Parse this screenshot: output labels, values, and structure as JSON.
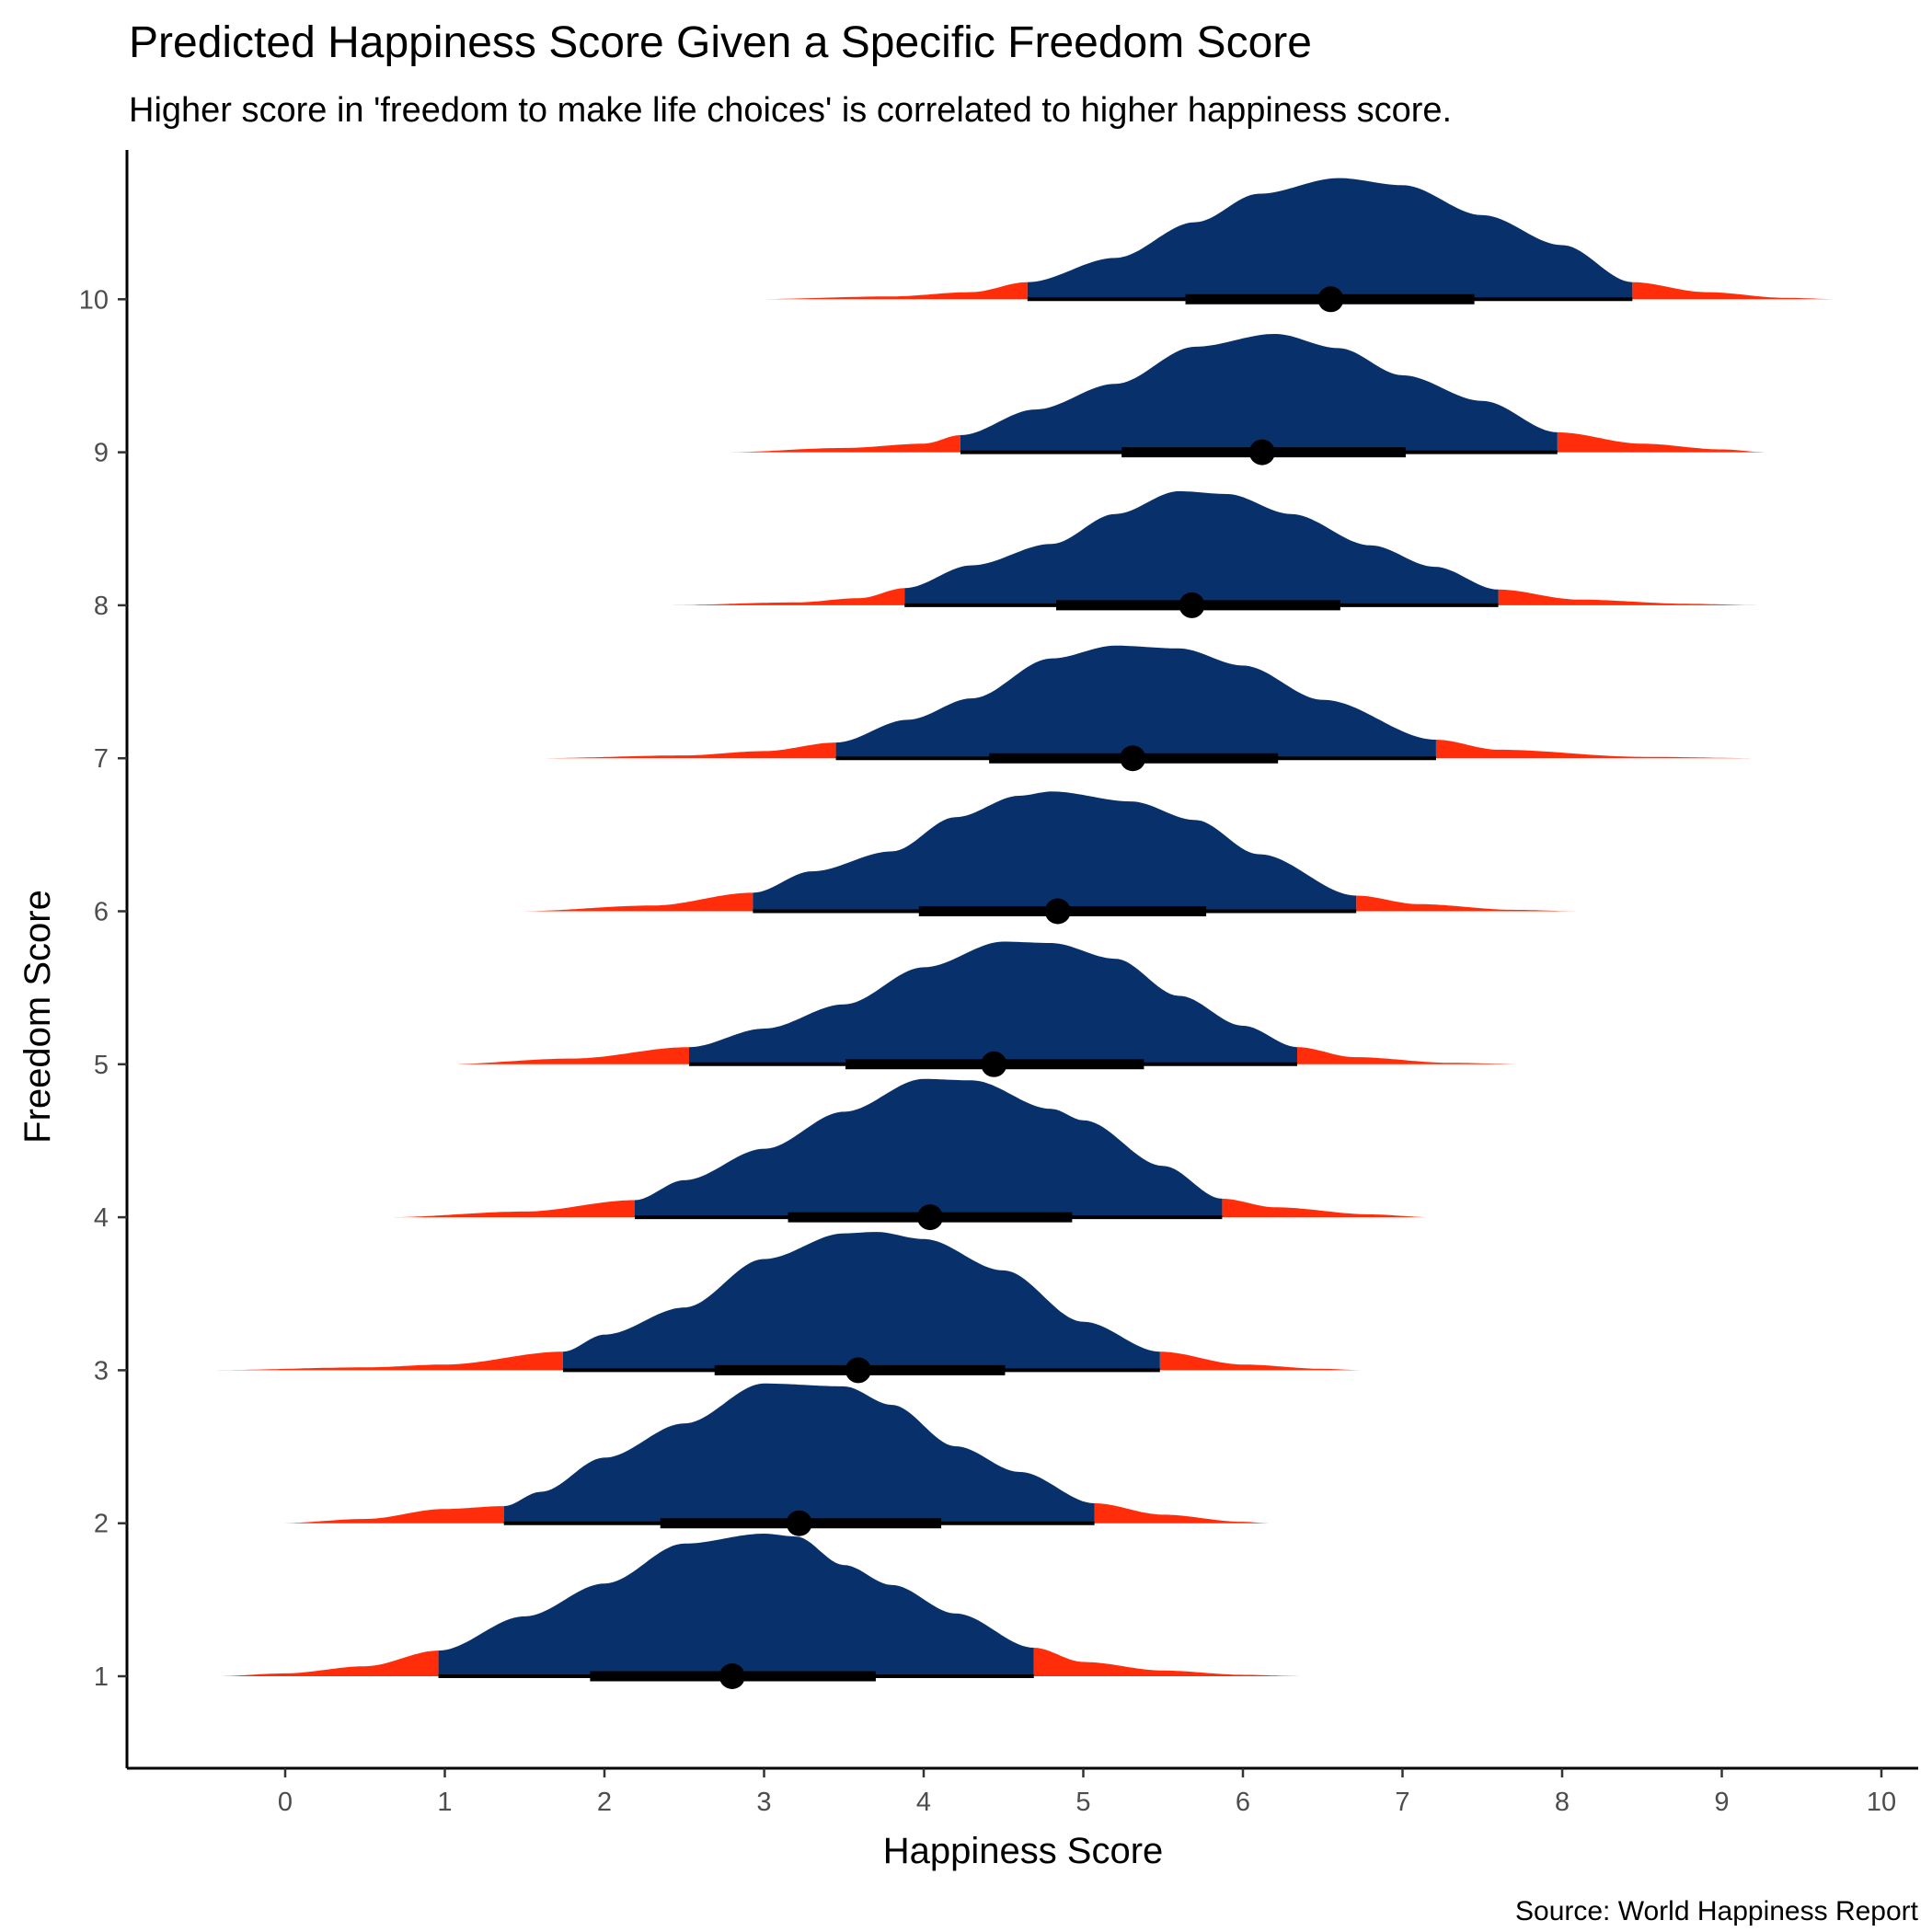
{
  "chart_data": {
    "type": "area",
    "title": "Predicted Happiness Score Given a Specific Freedom Score",
    "subtitle": "Higher score in 'freedom to make life choices' is correlated to higher happiness score.",
    "xlabel": "Happiness Score",
    "ylabel": "Freedom Score",
    "caption": "Source: World Happiness Report",
    "xlim": [
      -1.0,
      10.25
    ],
    "ylim": [
      0.4,
      11.0
    ],
    "x_ticks": [
      0,
      1,
      2,
      3,
      4,
      5,
      6,
      7,
      8,
      9,
      10
    ],
    "y_ticks": [
      1,
      2,
      3,
      4,
      5,
      6,
      7,
      8,
      9,
      10
    ],
    "colors": {
      "interval_fill": "#08306b",
      "tail_fill": "#ff2d0a",
      "interval_line": "#000000",
      "point": "#000000"
    },
    "series": [
      {
        "freedom": 1,
        "median": 2.8,
        "range": [
          -0.43,
          6.38
        ],
        "ci66": [
          1.91,
          3.7
        ],
        "ci95": [
          0.96,
          4.69
        ],
        "density": [
          [
            -0.43,
            0
          ],
          [
            0,
            0.02
          ],
          [
            0.5,
            0.07
          ],
          [
            0.96,
            0.18
          ],
          [
            1.5,
            0.42
          ],
          [
            2.0,
            0.65
          ],
          [
            2.5,
            0.93
          ],
          [
            3.0,
            1.0
          ],
          [
            3.2,
            0.98
          ],
          [
            3.5,
            0.78
          ],
          [
            3.8,
            0.64
          ],
          [
            4.2,
            0.44
          ],
          [
            4.69,
            0.2
          ],
          [
            5.0,
            0.1
          ],
          [
            5.5,
            0.04
          ],
          [
            6.0,
            0.01
          ],
          [
            6.38,
            0
          ]
        ]
      },
      {
        "freedom": 2,
        "median": 3.22,
        "range": [
          -0.03,
          6.17
        ],
        "ci66": [
          2.35,
          4.11
        ],
        "ci95": [
          1.37,
          5.07
        ],
        "density": [
          [
            -0.03,
            0
          ],
          [
            0.5,
            0.03
          ],
          [
            1.0,
            0.1
          ],
          [
            1.37,
            0.12
          ],
          [
            1.6,
            0.22
          ],
          [
            2.0,
            0.46
          ],
          [
            2.5,
            0.7
          ],
          [
            3.0,
            0.98
          ],
          [
            3.5,
            0.96
          ],
          [
            3.8,
            0.83
          ],
          [
            4.2,
            0.54
          ],
          [
            4.6,
            0.36
          ],
          [
            5.07,
            0.14
          ],
          [
            5.5,
            0.06
          ],
          [
            6.0,
            0.01
          ],
          [
            6.17,
            0
          ]
        ]
      },
      {
        "freedom": 3,
        "median": 3.59,
        "range": [
          -0.48,
          6.76
        ],
        "ci66": [
          2.69,
          4.51
        ],
        "ci95": [
          1.74,
          5.48
        ],
        "density": [
          [
            -0.48,
            0
          ],
          [
            0.5,
            0.02
          ],
          [
            1.0,
            0.04
          ],
          [
            1.74,
            0.13
          ],
          [
            2.0,
            0.25
          ],
          [
            2.5,
            0.44
          ],
          [
            3.0,
            0.78
          ],
          [
            3.5,
            0.96
          ],
          [
            3.7,
            0.97
          ],
          [
            4.0,
            0.92
          ],
          [
            4.5,
            0.7
          ],
          [
            5.0,
            0.34
          ],
          [
            5.48,
            0.13
          ],
          [
            6.0,
            0.04
          ],
          [
            6.5,
            0.01
          ],
          [
            6.76,
            0
          ]
        ]
      },
      {
        "freedom": 4,
        "median": 4.04,
        "range": [
          0.65,
          7.18
        ],
        "ci66": [
          3.15,
          4.93
        ],
        "ci95": [
          2.19,
          5.87
        ],
        "density": [
          [
            0.65,
            0
          ],
          [
            1.5,
            0.04
          ],
          [
            2.19,
            0.12
          ],
          [
            2.5,
            0.26
          ],
          [
            3.0,
            0.48
          ],
          [
            3.5,
            0.74
          ],
          [
            4.0,
            0.97
          ],
          [
            4.3,
            0.96
          ],
          [
            4.8,
            0.76
          ],
          [
            5.0,
            0.68
          ],
          [
            5.5,
            0.36
          ],
          [
            5.87,
            0.13
          ],
          [
            6.2,
            0.07
          ],
          [
            6.8,
            0.02
          ],
          [
            7.18,
            0
          ]
        ]
      },
      {
        "freedom": 5,
        "median": 4.44,
        "range": [
          1.0,
          7.78
        ],
        "ci66": [
          3.51,
          5.38
        ],
        "ci95": [
          2.53,
          6.34
        ],
        "density": [
          [
            1.0,
            0
          ],
          [
            1.8,
            0.04
          ],
          [
            2.53,
            0.12
          ],
          [
            3.0,
            0.25
          ],
          [
            3.5,
            0.42
          ],
          [
            4.0,
            0.68
          ],
          [
            4.5,
            0.86
          ],
          [
            4.8,
            0.85
          ],
          [
            5.2,
            0.74
          ],
          [
            5.6,
            0.48
          ],
          [
            6.0,
            0.27
          ],
          [
            6.34,
            0.12
          ],
          [
            6.7,
            0.05
          ],
          [
            7.3,
            0.01
          ],
          [
            7.78,
            0
          ]
        ]
      },
      {
        "freedom": 6,
        "median": 4.84,
        "range": [
          1.47,
          8.11
        ],
        "ci66": [
          3.97,
          5.77
        ],
        "ci95": [
          2.93,
          6.71
        ],
        "density": [
          [
            1.47,
            0
          ],
          [
            2.3,
            0.04
          ],
          [
            2.93,
            0.13
          ],
          [
            3.3,
            0.28
          ],
          [
            3.8,
            0.42
          ],
          [
            4.2,
            0.66
          ],
          [
            4.6,
            0.81
          ],
          [
            4.8,
            0.84
          ],
          [
            5.3,
            0.77
          ],
          [
            5.7,
            0.64
          ],
          [
            6.1,
            0.4
          ],
          [
            6.71,
            0.11
          ],
          [
            7.1,
            0.05
          ],
          [
            7.7,
            0.01
          ],
          [
            8.11,
            0
          ]
        ]
      },
      {
        "freedom": 7,
        "median": 5.31,
        "range": [
          1.58,
          9.26
        ],
        "ci66": [
          4.41,
          6.22
        ],
        "ci95": [
          3.45,
          7.21
        ],
        "density": [
          [
            1.58,
            0
          ],
          [
            2.5,
            0.02
          ],
          [
            3.0,
            0.05
          ],
          [
            3.45,
            0.11
          ],
          [
            3.9,
            0.27
          ],
          [
            4.3,
            0.42
          ],
          [
            4.8,
            0.7
          ],
          [
            5.2,
            0.79
          ],
          [
            5.6,
            0.77
          ],
          [
            6.0,
            0.65
          ],
          [
            6.5,
            0.41
          ],
          [
            7.21,
            0.13
          ],
          [
            7.6,
            0.06
          ],
          [
            8.5,
            0.01
          ],
          [
            9.26,
            0
          ]
        ]
      },
      {
        "freedom": 8,
        "median": 5.68,
        "range": [
          2.37,
          9.25
        ],
        "ci66": [
          4.83,
          6.61
        ],
        "ci95": [
          3.88,
          7.6
        ],
        "density": [
          [
            2.37,
            0
          ],
          [
            3.2,
            0.02
          ],
          [
            3.6,
            0.05
          ],
          [
            3.88,
            0.12
          ],
          [
            4.3,
            0.28
          ],
          [
            4.8,
            0.43
          ],
          [
            5.2,
            0.64
          ],
          [
            5.6,
            0.8
          ],
          [
            5.9,
            0.78
          ],
          [
            6.3,
            0.64
          ],
          [
            6.8,
            0.42
          ],
          [
            7.2,
            0.27
          ],
          [
            7.6,
            0.11
          ],
          [
            8.1,
            0.04
          ],
          [
            8.8,
            0.01
          ],
          [
            9.25,
            0
          ]
        ]
      },
      {
        "freedom": 9,
        "median": 6.12,
        "range": [
          2.76,
          9.28
        ],
        "ci66": [
          5.24,
          7.02
        ],
        "ci95": [
          4.23,
          7.97
        ],
        "density": [
          [
            2.76,
            0
          ],
          [
            3.5,
            0.03
          ],
          [
            4.0,
            0.06
          ],
          [
            4.23,
            0.12
          ],
          [
            4.7,
            0.3
          ],
          [
            5.2,
            0.48
          ],
          [
            5.7,
            0.74
          ],
          [
            6.2,
            0.83
          ],
          [
            6.6,
            0.73
          ],
          [
            7.0,
            0.54
          ],
          [
            7.5,
            0.36
          ],
          [
            7.97,
            0.14
          ],
          [
            8.5,
            0.06
          ],
          [
            9.0,
            0.02
          ],
          [
            9.28,
            0
          ]
        ]
      },
      {
        "freedom": 10,
        "median": 6.55,
        "range": [
          2.91,
          9.75
        ],
        "ci66": [
          5.64,
          7.45
        ],
        "ci95": [
          4.65,
          8.44
        ],
        "density": [
          [
            2.91,
            0
          ],
          [
            3.8,
            0.02
          ],
          [
            4.3,
            0.05
          ],
          [
            4.65,
            0.12
          ],
          [
            5.2,
            0.29
          ],
          [
            5.7,
            0.54
          ],
          [
            6.1,
            0.74
          ],
          [
            6.6,
            0.85
          ],
          [
            7.0,
            0.8
          ],
          [
            7.5,
            0.59
          ],
          [
            8.0,
            0.38
          ],
          [
            8.44,
            0.12
          ],
          [
            8.9,
            0.05
          ],
          [
            9.4,
            0.01
          ],
          [
            9.75,
            0
          ]
        ]
      }
    ]
  }
}
